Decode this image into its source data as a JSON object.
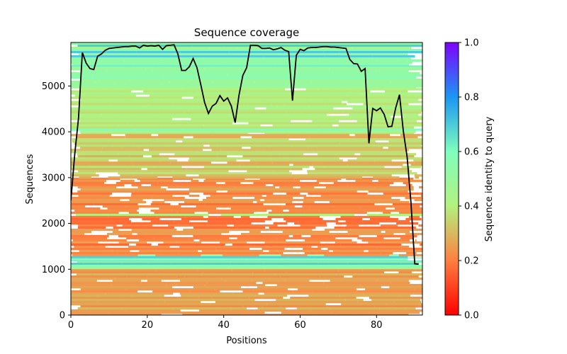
{
  "chart_data": {
    "type": "heatmap",
    "title": "Sequence coverage",
    "xlabel": "Positions",
    "ylabel": "Sequences",
    "colorbar_label": "Sequence identity to query",
    "xlim": [
      0,
      92
    ],
    "ylim": [
      0,
      5950
    ],
    "xticks": [
      0,
      20,
      40,
      60,
      80
    ],
    "yticks": [
      0,
      1000,
      2000,
      3000,
      4000,
      5000
    ],
    "colorbar_ticks": [
      0.0,
      0.2,
      0.4,
      0.6,
      0.8,
      1.0
    ],
    "colormap": "rainbow_r",
    "colormap_stops": [
      "#ff0000",
      "#ff7f3f",
      "#b3f27e",
      "#7ffebd",
      "#1a96f3",
      "#7f00ff"
    ],
    "grid": false,
    "bands": [
      {
        "y0": 0,
        "y1": 1050,
        "identity": 0.27,
        "gaps": "sparse"
      },
      {
        "y0": 1050,
        "y1": 1330,
        "identity": 0.52,
        "gaps": "none"
      },
      {
        "y0": 1330,
        "y1": 3000,
        "identity": 0.22,
        "gaps": "dense"
      },
      {
        "y0": 3000,
        "y1": 4000,
        "identity": 0.33,
        "gaps": "medium"
      },
      {
        "y0": 4000,
        "y1": 5000,
        "identity": 0.41,
        "gaps": "sparse"
      },
      {
        "y0": 5000,
        "y1": 5950,
        "identity": 0.52,
        "gaps": "none"
      }
    ],
    "coverage_line": {
      "color": "#000000",
      "x": [
        0,
        1,
        2,
        3,
        4,
        5,
        6,
        7,
        8,
        9,
        10,
        11,
        12,
        13,
        14,
        15,
        16,
        17,
        18,
        19,
        20,
        21,
        22,
        23,
        24,
        25,
        26,
        27,
        28,
        29,
        30,
        31,
        32,
        33,
        34,
        35,
        36,
        37,
        38,
        39,
        40,
        41,
        42,
        43,
        44,
        45,
        46,
        47,
        48,
        49,
        50,
        51,
        52,
        53,
        54,
        55,
        56,
        57,
        58,
        59,
        60,
        61,
        62,
        63,
        64,
        65,
        66,
        67,
        68,
        69,
        70,
        71,
        72,
        73,
        74,
        75,
        76,
        77,
        78,
        79,
        80,
        81,
        82,
        83,
        84,
        85,
        86,
        87,
        88,
        89,
        90,
        91
      ],
      "y": [
        2500,
        3500,
        4300,
        5730,
        5500,
        5380,
        5360,
        5650,
        5700,
        5780,
        5820,
        5830,
        5840,
        5850,
        5860,
        5860,
        5870,
        5870,
        5830,
        5890,
        5870,
        5880,
        5870,
        5890,
        5800,
        5880,
        5890,
        5900,
        5700,
        5340,
        5340,
        5420,
        5600,
        5400,
        5030,
        4640,
        4400,
        4560,
        4620,
        4790,
        4670,
        4740,
        4560,
        4200,
        4800,
        5230,
        5400,
        5890,
        5890,
        5880,
        5820,
        5820,
        5830,
        5790,
        5810,
        5840,
        5780,
        5750,
        4680,
        5670,
        5800,
        5770,
        5830,
        5840,
        5840,
        5850,
        5860,
        5860,
        5850,
        5850,
        5840,
        5830,
        5820,
        5580,
        5490,
        5480,
        5320,
        5380,
        3750,
        4510,
        4460,
        4520,
        4380,
        4110,
        4120,
        4520,
        4810,
        4020,
        3450,
        2460,
        1120,
        1110
      ]
    }
  }
}
